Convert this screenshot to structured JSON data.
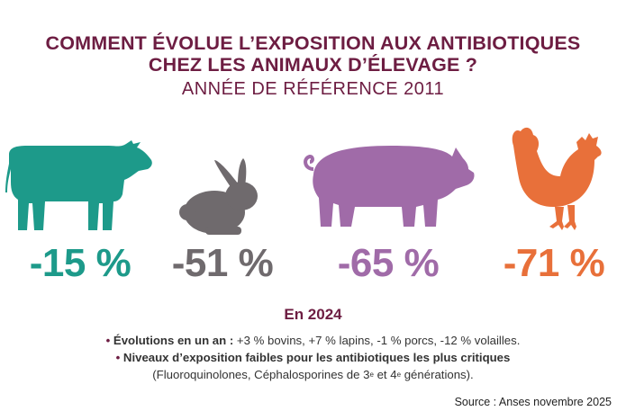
{
  "title_line1": "COMMENT ÉVOLUE L’EXPOSITION AUX ANTIBIOTIQUES",
  "title_line2": "CHEZ LES ANIMAUX D’ÉLEVAGE ?",
  "subtitle": "ANNÉE DE RÉFÉRENCE 2011",
  "animals": [
    {
      "icon": "cow-icon",
      "value": "-15 %",
      "color": "#1d9a8a"
    },
    {
      "icon": "rabbit-icon",
      "value": "-51 %",
      "color": "#6f6a6d"
    },
    {
      "icon": "pig-icon",
      "value": "-65 %",
      "color": "#a06ba8"
    },
    {
      "icon": "chicken-icon",
      "value": "-71 %",
      "color": "#e8703a"
    }
  ],
  "year_heading": "En 2024",
  "bullet_char": "•",
  "evolutions_label": "Évolutions en un an :",
  "evolutions_text": "+3 % bovins, +7 % lapins, -1 % porcs, -12 % volailles.",
  "niveaux_label": "Niveaux d’exposition faibles pour les antibiotiques les plus critiques",
  "niveaux_detail_part1": "(Fluoroquinolones, Céphalosporines de 3",
  "niveaux_detail_sup1": "e",
  "niveaux_detail_part2": " et 4",
  "niveaux_detail_sup2": "e",
  "niveaux_detail_part3": " générations).",
  "source": "Source : Anses novembre 2025"
}
